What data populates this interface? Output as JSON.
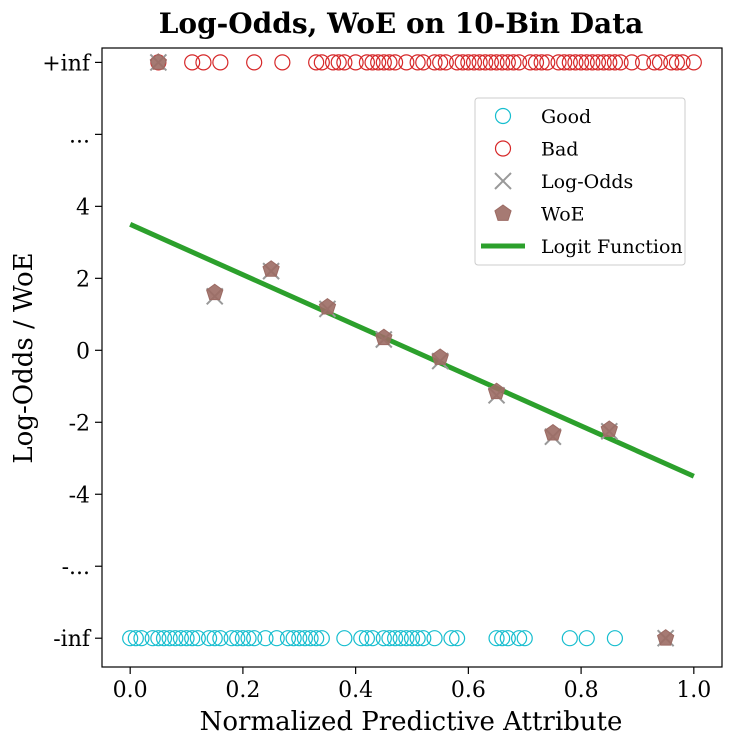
{
  "chart_data": {
    "type": "scatter",
    "title": "Log-Odds, WoE on 10-Bin Data",
    "xlabel": "Normalized Predictive Attribute",
    "ylabel": "Log-Odds / WoE",
    "xlim": [
      -0.05,
      1.05
    ],
    "ylim": [
      -8.8,
      8.4
    ],
    "grid": false,
    "legend_position": "top-right",
    "x_ticks": [
      {
        "value": 0.0,
        "label": "0.0"
      },
      {
        "value": 0.2,
        "label": "0.2"
      },
      {
        "value": 0.4,
        "label": "0.4"
      },
      {
        "value": 0.6,
        "label": "0.6"
      },
      {
        "value": 0.8,
        "label": "0.8"
      },
      {
        "value": 1.0,
        "label": "1.0"
      }
    ],
    "y_ticks": [
      {
        "value": 8,
        "label": "+inf"
      },
      {
        "value": 6,
        "label": "..."
      },
      {
        "value": 4,
        "label": "4"
      },
      {
        "value": 2,
        "label": "2"
      },
      {
        "value": 0,
        "label": "0"
      },
      {
        "value": -2,
        "label": "-2"
      },
      {
        "value": -4,
        "label": "-4"
      },
      {
        "value": -6,
        "label": "-..."
      },
      {
        "value": -8,
        "label": "-inf"
      }
    ],
    "series": [
      {
        "name": "Good",
        "marker": "circle-open",
        "color": "#17becf",
        "y": -8,
        "x": [
          0.0,
          0.01,
          0.02,
          0.04,
          0.05,
          0.06,
          0.07,
          0.08,
          0.09,
          0.1,
          0.11,
          0.12,
          0.14,
          0.15,
          0.16,
          0.18,
          0.19,
          0.2,
          0.21,
          0.22,
          0.24,
          0.26,
          0.28,
          0.29,
          0.3,
          0.31,
          0.32,
          0.33,
          0.34,
          0.38,
          0.41,
          0.42,
          0.43,
          0.45,
          0.46,
          0.47,
          0.48,
          0.49,
          0.5,
          0.51,
          0.52,
          0.54,
          0.57,
          0.58,
          0.65,
          0.66,
          0.67,
          0.69,
          0.7,
          0.78,
          0.81,
          0.86
        ]
      },
      {
        "name": "Bad",
        "marker": "circle-open",
        "color": "#d62728",
        "y": 8,
        "x": [
          0.05,
          0.11,
          0.13,
          0.16,
          0.22,
          0.27,
          0.33,
          0.34,
          0.36,
          0.37,
          0.38,
          0.4,
          0.42,
          0.43,
          0.44,
          0.45,
          0.46,
          0.47,
          0.49,
          0.51,
          0.52,
          0.54,
          0.55,
          0.56,
          0.58,
          0.59,
          0.6,
          0.61,
          0.62,
          0.63,
          0.64,
          0.65,
          0.66,
          0.67,
          0.68,
          0.69,
          0.71,
          0.72,
          0.73,
          0.74,
          0.76,
          0.77,
          0.78,
          0.79,
          0.8,
          0.81,
          0.82,
          0.83,
          0.84,
          0.85,
          0.86,
          0.87,
          0.89,
          0.91,
          0.93,
          0.94,
          0.96,
          0.97,
          0.98,
          1.0
        ]
      },
      {
        "name": "Log-Odds",
        "marker": "x",
        "color": "#999999",
        "x": [
          0.05,
          0.15,
          0.25,
          0.35,
          0.45,
          0.55,
          0.65,
          0.75,
          0.85,
          0.95
        ],
        "y": [
          8,
          1.5,
          2.2,
          1.15,
          0.3,
          -0.3,
          -1.25,
          -2.4,
          -2.25,
          -8
        ]
      },
      {
        "name": "WoE",
        "marker": "pentagon",
        "color": "#9c6b64",
        "x": [
          0.05,
          0.15,
          0.25,
          0.35,
          0.45,
          0.55,
          0.65,
          0.75,
          0.85,
          0.95
        ],
        "y": [
          8,
          1.6,
          2.25,
          1.2,
          0.35,
          -0.2,
          -1.15,
          -2.3,
          -2.2,
          -8
        ]
      },
      {
        "name": "Logit Function",
        "marker": "line",
        "color": "#2ca02c",
        "x": [
          0.0,
          1.0
        ],
        "y": [
          3.5,
          -3.5
        ]
      }
    ]
  }
}
